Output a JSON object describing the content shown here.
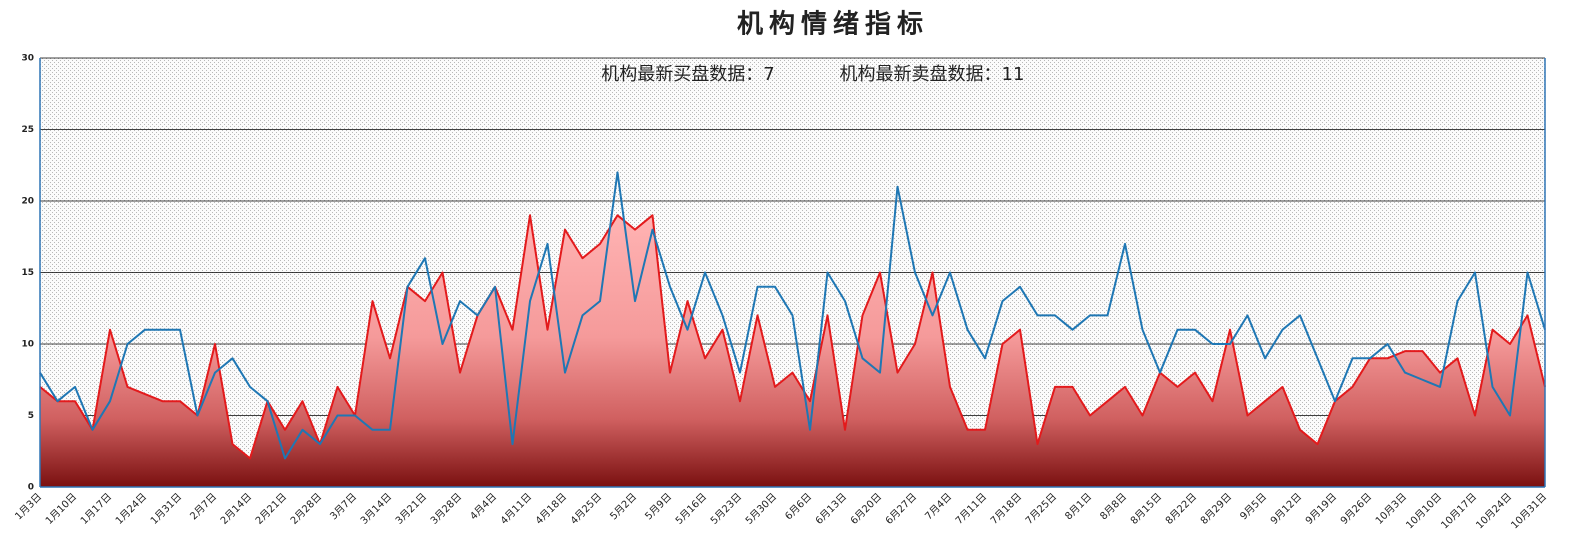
{
  "chart_data": {
    "type": "line",
    "title": "机构情绪指标",
    "annotations": [
      "机构最新买盘数据：7",
      "机构最新卖盘数据：11"
    ],
    "categories": [
      "1月3日",
      null,
      "1月10日",
      null,
      "1月17日",
      null,
      "1月24日",
      null,
      "1月31日",
      null,
      "2月7日",
      null,
      "2月14日",
      null,
      "2月21日",
      null,
      "2月28日",
      null,
      "3月7日",
      null,
      "3月14日",
      null,
      "3月21日",
      null,
      "3月28日",
      null,
      "4月4日",
      null,
      "4月11日",
      null,
      "4月18日",
      null,
      "4月25日",
      null,
      "5月2日",
      null,
      "5月9日",
      null,
      "5月16日",
      null,
      "5月23日",
      null,
      "5月30日",
      null,
      "6月6日",
      null,
      "6月13日",
      null,
      "6月20日",
      null,
      "6月27日",
      null,
      "7月4日",
      null,
      "7月11日",
      null,
      "7月18日",
      null,
      "7月25日",
      null,
      "8月1日",
      null,
      "8月8日",
      null,
      "8月15日",
      null,
      "8月22日",
      null,
      "8月29日",
      null,
      "9月5日",
      null,
      "9月12日",
      null,
      "9月19日",
      null,
      "9月26日",
      null,
      "10月3日",
      null,
      "10月10日",
      null,
      "10月17日",
      null,
      "10月24日",
      null,
      "10月31日"
    ],
    "series": [
      {
        "color": "#e31a1c",
        "fill": true,
        "values": [
          7,
          6,
          6,
          4,
          11,
          7,
          6.5,
          6,
          6,
          5,
          10,
          3,
          2,
          6,
          4,
          6,
          3,
          7,
          5,
          13,
          9,
          14,
          13,
          15,
          8,
          12,
          14,
          11,
          19,
          11,
          18,
          16,
          17,
          19,
          18,
          19,
          8,
          13,
          9,
          11,
          6,
          12,
          7,
          8,
          6,
          12,
          4,
          12,
          15,
          8,
          10,
          15,
          7,
          4,
          4,
          10,
          11,
          3,
          7,
          7,
          5,
          6,
          7,
          5,
          8,
          7,
          8,
          6,
          11,
          5,
          6,
          7,
          4,
          3,
          6,
          7,
          9,
          9,
          9.5,
          9.5,
          8,
          9,
          5,
          11,
          10,
          12,
          7
        ]
      },
      {
        "color": "#1f77b4",
        "fill": false,
        "values": [
          8,
          6,
          7,
          4,
          6,
          10,
          11,
          11,
          11,
          5,
          8,
          9,
          7,
          6,
          2,
          4,
          3,
          5,
          5,
          4,
          4,
          14,
          16,
          10,
          13,
          12,
          14,
          3,
          13,
          17,
          8,
          12,
          13,
          22,
          13,
          18,
          14,
          11,
          15,
          12,
          8,
          14,
          14,
          12,
          4,
          15,
          13,
          9,
          8,
          21,
          15,
          12,
          15,
          11,
          9,
          13,
          14,
          12,
          12,
          11,
          12,
          12,
          17,
          11,
          8,
          11,
          11,
          10,
          10,
          12,
          9,
          11,
          12,
          9,
          6,
          9,
          9,
          10,
          8,
          7.5,
          7,
          13,
          15,
          7,
          5,
          15,
          11
        ]
      }
    ],
    "ylim": [
      0,
      30
    ],
    "yticks": [
      0,
      5,
      10,
      15,
      20,
      25,
      30
    ],
    "grid": true
  }
}
